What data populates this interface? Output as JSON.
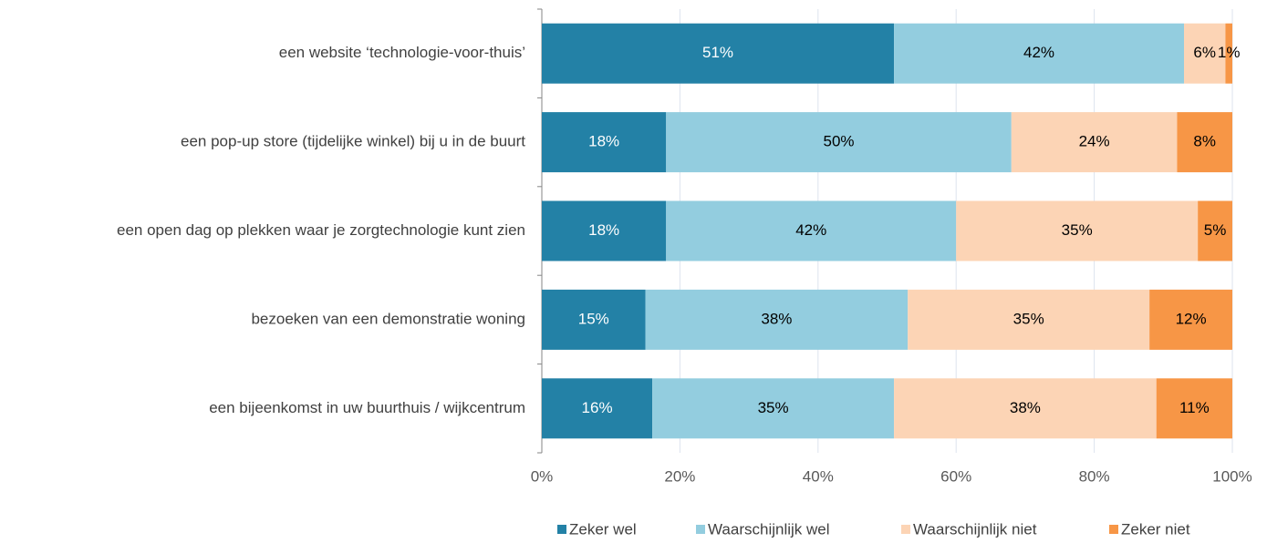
{
  "chart_data": {
    "type": "stacked-barh",
    "categories": [
      "een website ‘technologie-voor-thuis’",
      "een pop-up store (tijdelijke winkel) bij u in de buurt",
      "een open dag op plekken waar je zorgtechnologie kunt zien",
      "bezoeken van een demonstratie woning",
      "een bijeenkomst in uw buurthuis / wijkcentrum"
    ],
    "series": [
      {
        "name": "Zeker wel",
        "color": "#2381a6",
        "values": [
          51,
          18,
          18,
          15,
          16
        ],
        "value_labels": [
          "51%",
          "18%",
          "18%",
          "15%",
          "16%"
        ]
      },
      {
        "name": "Waarschijnlijk wel",
        "color": "#93cddf",
        "values": [
          42,
          50,
          42,
          38,
          35
        ],
        "value_labels": [
          "42%",
          "50%",
          "42%",
          "38%",
          "35%"
        ]
      },
      {
        "name": "Waarschijnlijk niet",
        "color": "#fcd4b5",
        "values": [
          6,
          24,
          35,
          35,
          38
        ],
        "value_labels": [
          "6%",
          "24%",
          "35%",
          "35%",
          "38%"
        ]
      },
      {
        "name": "Zeker niet",
        "color": "#f79646",
        "values": [
          1,
          8,
          5,
          12,
          11
        ],
        "value_labels": [
          "1%",
          "8%",
          "5%",
          "12%",
          "11%"
        ]
      }
    ],
    "xlim": [
      0,
      100
    ],
    "xticks": [
      {
        "value": 0,
        "label": "0%"
      },
      {
        "value": 20,
        "label": "20%"
      },
      {
        "value": 40,
        "label": "40%"
      },
      {
        "value": 60,
        "label": "60%"
      },
      {
        "value": 80,
        "label": "80%"
      },
      {
        "value": 100,
        "label": "100%"
      }
    ],
    "grid": true,
    "legend": "bottom"
  }
}
